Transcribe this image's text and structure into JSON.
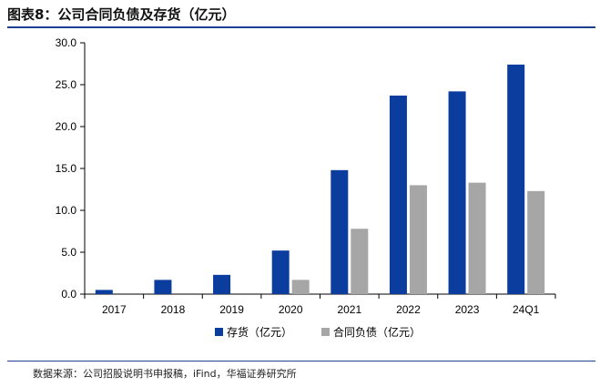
{
  "header": {
    "title": "图表8：公司合同负债及存货（亿元）"
  },
  "chart_data": {
    "type": "bar",
    "categories": [
      "2017",
      "2018",
      "2019",
      "2020",
      "2021",
      "2022",
      "2023",
      "24Q1"
    ],
    "series": [
      {
        "name": "存货（亿元）",
        "color": "#0b3d9e",
        "values": [
          0.5,
          1.7,
          2.3,
          5.2,
          14.8,
          23.7,
          24.2,
          27.4
        ]
      },
      {
        "name": "合同负债（亿元）",
        "color": "#a6a6a6",
        "values": [
          0,
          0,
          0,
          1.7,
          7.8,
          13.0,
          13.3,
          12.3
        ]
      }
    ],
    "yticks": [
      "0.0",
      "5.0",
      "10.0",
      "15.0",
      "20.0",
      "25.0",
      "30.0"
    ],
    "ylim": [
      0,
      30
    ],
    "grid": false,
    "legend_position": "bottom"
  },
  "footer": {
    "source": "数据来源：公司招股说明书申报稿，iFind，华福证券研究所"
  }
}
